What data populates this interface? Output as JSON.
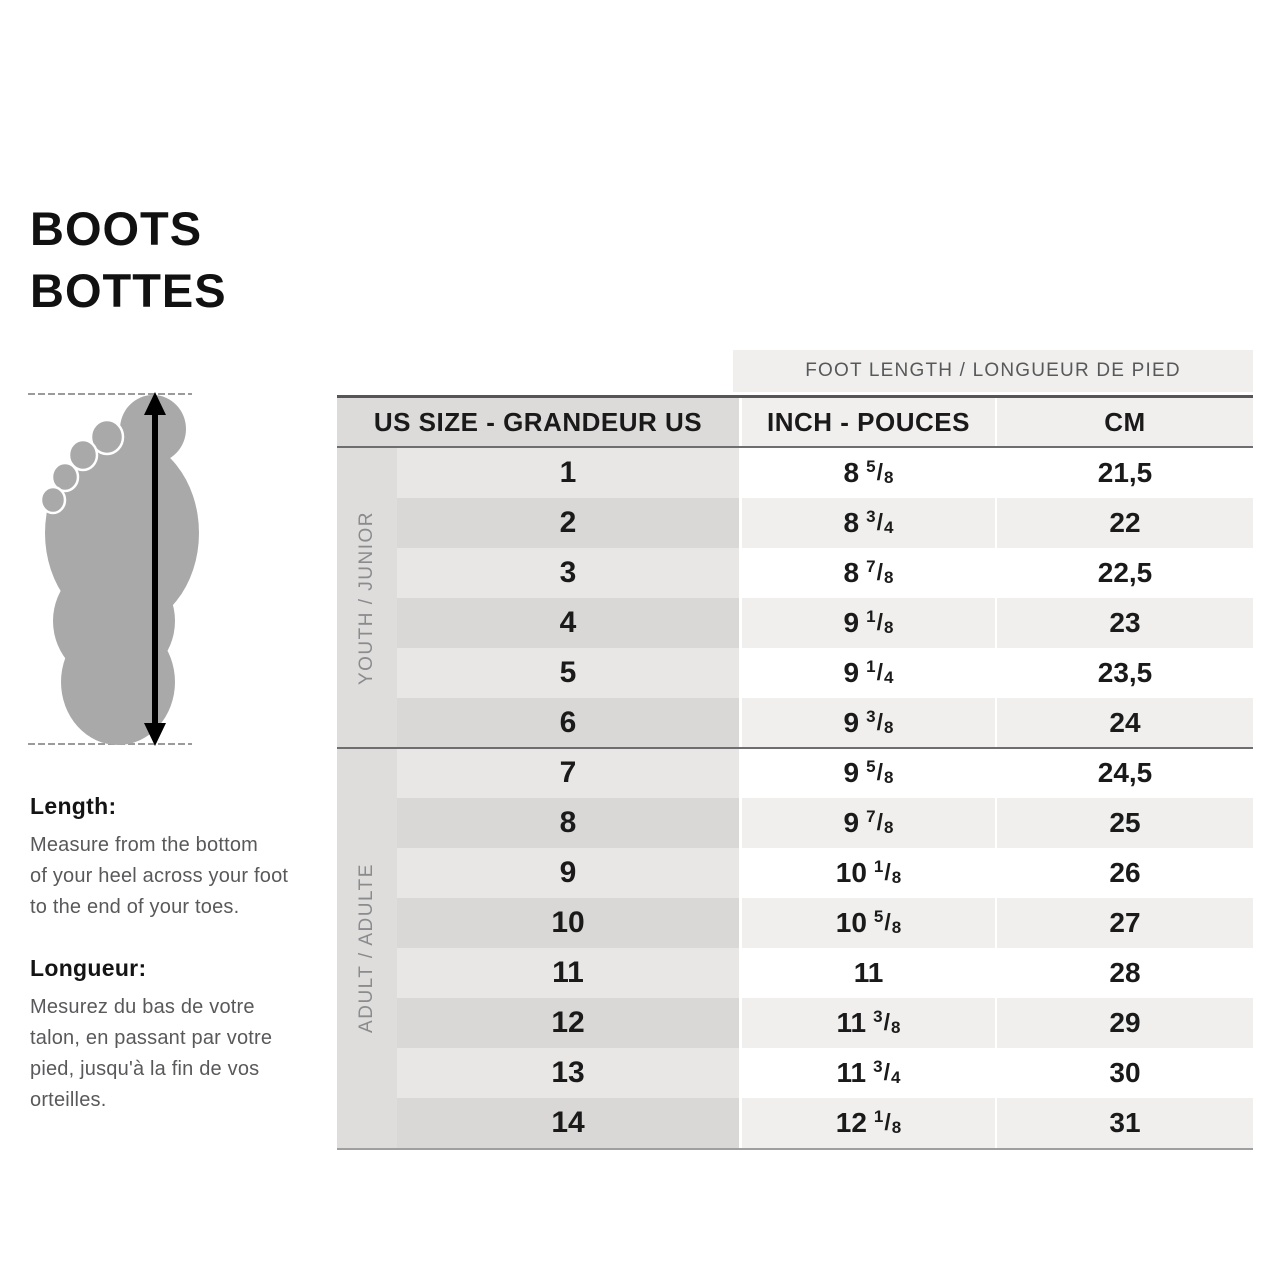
{
  "title": {
    "line1": "BOOTS",
    "line2": "BOTTES"
  },
  "notes": {
    "length": {
      "heading": "Length:",
      "body": "Measure from the bottom\nof your heel across your foot\nto the end of your toes."
    },
    "longueur": {
      "heading": "Longueur:",
      "body": "Mesurez du bas de votre\ntalon, en passant par votre\npied, jusqu'à la fin de vos\norteilles."
    }
  },
  "foot_diagram": {
    "icon": "foot-outline-with-measurement-arrow",
    "arrow": "vertical double-headed arrow between dashed heel and toe lines"
  },
  "table": {
    "span_header": "FOOT LENGTH / LONGUEUR DE PIED",
    "columns": {
      "us": "US SIZE - GRANDEUR US",
      "inch": "INCH - POUCES",
      "cm": "CM"
    },
    "groups": [
      {
        "label": "YOUTH / JUNIOR",
        "rows": [
          {
            "us": "1",
            "inch": "8 5/8",
            "cm": "21,5"
          },
          {
            "us": "2",
            "inch": "8 3/4",
            "cm": "22"
          },
          {
            "us": "3",
            "inch": "8 7/8",
            "cm": "22,5"
          },
          {
            "us": "4",
            "inch": "9 1/8",
            "cm": "23"
          },
          {
            "us": "5",
            "inch": "9 1/4",
            "cm": "23,5"
          },
          {
            "us": "6",
            "inch": "9 3/8",
            "cm": "24"
          }
        ]
      },
      {
        "label": "ADULT / ADULTE",
        "rows": [
          {
            "us": "7",
            "inch": "9 5/8",
            "cm": "24,5"
          },
          {
            "us": "8",
            "inch": "9 7/8",
            "cm": "25"
          },
          {
            "us": "9",
            "inch": "10 1/8",
            "cm": "26"
          },
          {
            "us": "10",
            "inch": "10 5/8",
            "cm": "27"
          },
          {
            "us": "11",
            "inch": "11",
            "cm": "28"
          },
          {
            "us": "12",
            "inch": "11 3/8",
            "cm": "29"
          },
          {
            "us": "13",
            "inch": "11 3/4",
            "cm": "30"
          },
          {
            "us": "14",
            "inch": "12 1/8",
            "cm": "31"
          }
        ]
      }
    ]
  },
  "colors": {
    "text_black": "#1a1a1a",
    "text_gray": "#59595b",
    "label_gray": "#8a8b8d",
    "band_bg": "#f0efed",
    "us_header_bg": "#dcdbd9",
    "group_col_bg": "#dedddc",
    "us_row_odd": "#e8e7e5",
    "us_row_even": "#d9d8d6",
    "data_row_odd": "#ffffff",
    "data_row_even": "#f0efee",
    "border_dark": "#565659",
    "border_mid": "#6e6e71",
    "border_bottom": "#9f9f9f",
    "foot_gray": "#a9a9a9"
  }
}
